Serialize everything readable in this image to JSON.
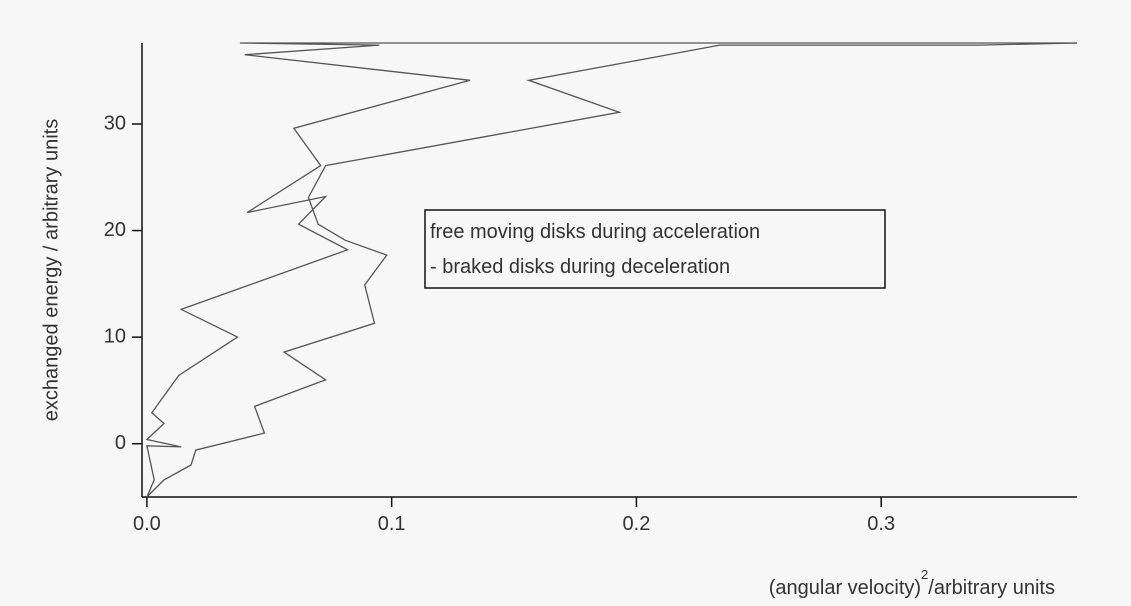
{
  "chart_data": {
    "type": "line",
    "ylabel": "exchanged energy / arbitrary units",
    "xlabel": [
      "(angular velocity)",
      "2",
      "/arbitrary units"
    ],
    "annotations": [
      "free moving disks during acceleration",
      " - braked disks during deceleration"
    ],
    "xlim": [
      -0.002,
      0.38
    ],
    "ylim": [
      -5,
      37.6
    ],
    "xticks": [
      {
        "value": 0,
        "label": "0.0"
      },
      0.1,
      0.2,
      0.3
    ],
    "yticks": [
      0,
      10,
      20,
      30
    ],
    "series": [
      {
        "color": "#555555",
        "x": [
          0,
          0.003,
          0,
          0.014,
          0,
          0.007,
          0.002,
          0.013,
          0.037,
          0.014,
          0.082,
          0.062,
          0.073,
          0.041,
          0.071,
          0.06,
          0.132,
          0.04,
          0.095,
          0.038,
          0.38
        ],
        "values": [
          -5,
          -3.4,
          -0.2,
          -0.3,
          0.4,
          1.9,
          2.9,
          6.4,
          10,
          12.6,
          18.2,
          20.6,
          23.2,
          21.7,
          26.1,
          29.6,
          34.1,
          36.5,
          37.4,
          37.6,
          37.6
        ]
      },
      {
        "color": "#555555",
        "x": [
          0,
          0.007,
          0.018,
          0.02,
          0.048,
          0.044,
          0.073,
          0.056,
          0.093,
          0.089,
          0.098,
          0.081,
          0.07,
          0.066,
          0.073,
          0.193,
          0.156,
          0.201,
          0.234,
          0.34,
          0.38
        ],
        "values": [
          -5,
          -3.4,
          -2,
          -0.6,
          1,
          3.5,
          6,
          8.6,
          11.3,
          14.9,
          17.7,
          19.1,
          20.6,
          23.1,
          26.1,
          31.1,
          34.1,
          36,
          37.4,
          37.4,
          37.6
        ]
      }
    ]
  }
}
